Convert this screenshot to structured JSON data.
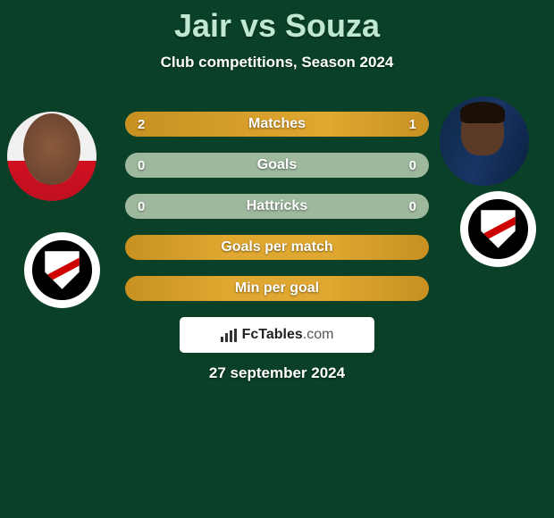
{
  "header": {
    "title": "Jair vs Souza",
    "subtitle": "Club competitions, Season 2024"
  },
  "stats": [
    {
      "label": "Matches",
      "left_val": "2",
      "right_val": "1",
      "left_pct": 66.7,
      "right_pct": 33.3,
      "type": "split"
    },
    {
      "label": "Goals",
      "left_val": "0",
      "right_val": "0",
      "left_pct": 0,
      "right_pct": 0,
      "type": "split"
    },
    {
      "label": "Hattricks",
      "left_val": "0",
      "right_val": "0",
      "left_pct": 0,
      "right_pct": 0,
      "type": "split"
    },
    {
      "label": "Goals per match",
      "left_val": "",
      "right_val": "",
      "type": "full"
    },
    {
      "label": "Min per goal",
      "left_val": "",
      "right_val": "",
      "type": "full"
    }
  ],
  "colors": {
    "bar_fill": "#e0a830",
    "bar_empty": "#9eb89e",
    "background": "#0a4028",
    "title": "#c0e8d0"
  },
  "branding": {
    "name": "FcTables",
    "suffix": ".com"
  },
  "date_text": "27 september 2024",
  "players": {
    "left": {
      "name": "Jair"
    },
    "right": {
      "name": "Souza"
    }
  }
}
